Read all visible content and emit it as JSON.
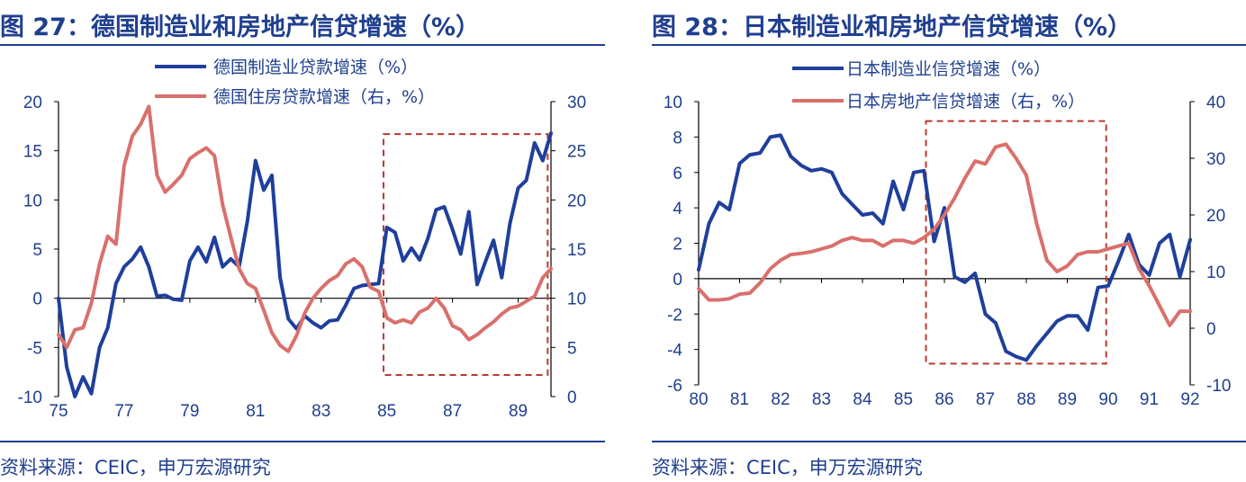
{
  "colors": {
    "navy": "#1f3f8f",
    "series1": "#1f3f9c",
    "series2": "#d9706c",
    "box": "#b83a2e"
  },
  "panels": [
    {
      "title": "图 27：德国制造业和房地产信贷增速（%）",
      "source": "资料来源：CEIC，申万宏源研究",
      "chart_data": {
        "type": "line",
        "x_ticks": [
          "75",
          "77",
          "79",
          "81",
          "83",
          "85",
          "87",
          "89"
        ],
        "y_left_ticks": [
          "20",
          "15",
          "10",
          "5",
          "0",
          "-5",
          "-10"
        ],
        "y_right_ticks": [
          "30",
          "25",
          "20",
          "15",
          "10",
          "5",
          "0"
        ],
        "y_left_range": [
          -10,
          20
        ],
        "y_right_range": [
          0,
          30
        ],
        "x_range": [
          1975,
          1990
        ],
        "highlight_x": [
          1984.9,
          1989.9
        ],
        "highlight_y_left": [
          -7.8,
          16.7
        ],
        "series": [
          {
            "name": "德国制造业贷款增速（%）",
            "axis": "left",
            "x": [
              1975.0,
              1975.25,
              1975.5,
              1975.75,
              1976.0,
              1976.25,
              1976.5,
              1976.75,
              1977.0,
              1977.25,
              1977.5,
              1977.75,
              1978.0,
              1978.25,
              1978.5,
              1978.75,
              1979.0,
              1979.25,
              1979.5,
              1979.75,
              1980.0,
              1980.25,
              1980.5,
              1980.75,
              1981.0,
              1981.25,
              1981.5,
              1981.75,
              1982.0,
              1982.25,
              1982.5,
              1982.75,
              1983.0,
              1983.25,
              1983.5,
              1983.75,
              1984.0,
              1984.25,
              1984.5,
              1984.75,
              1985.0,
              1985.25,
              1985.5,
              1985.75,
              1986.0,
              1986.25,
              1986.5,
              1986.75,
              1987.0,
              1987.25,
              1987.5,
              1987.75,
              1988.0,
              1988.25,
              1988.5,
              1988.75,
              1989.0,
              1989.25,
              1989.5,
              1989.75,
              1990.0
            ],
            "values": [
              0,
              -7,
              -10,
              -8,
              -9.7,
              -5,
              -3,
              1.5,
              3.2,
              4,
              5.2,
              3.2,
              0.2,
              0.3,
              -0.1,
              -0.2,
              3.8,
              5.2,
              3.7,
              6.2,
              3.2,
              4,
              3.2,
              7.8,
              14,
              11,
              12.5,
              2.1,
              -2.1,
              -3.1,
              -1.8,
              -2.5,
              -3,
              -2.3,
              -2.2,
              -0.7,
              1,
              1.3,
              1.4,
              1.5,
              7.2,
              6.7,
              3.8,
              5.1,
              3.9,
              6.1,
              9,
              9.3,
              7,
              4.5,
              8.8,
              1.4,
              3.7,
              5.9,
              2.1,
              7.6,
              11.2,
              12,
              15.8,
              14,
              16.8
            ]
          },
          {
            "name": "德国住房贷款增速（右，%）",
            "axis": "right",
            "x": [
              1975.0,
              1975.25,
              1975.5,
              1975.75,
              1976.0,
              1976.25,
              1976.5,
              1976.75,
              1977.0,
              1977.25,
              1977.5,
              1977.75,
              1978.0,
              1978.25,
              1978.5,
              1978.75,
              1979.0,
              1979.25,
              1979.5,
              1979.75,
              1980.0,
              1980.25,
              1980.5,
              1980.75,
              1981.0,
              1981.25,
              1981.5,
              1981.75,
              1982.0,
              1982.25,
              1982.5,
              1982.75,
              1983.0,
              1983.25,
              1983.5,
              1983.75,
              1984.0,
              1984.25,
              1984.5,
              1984.75,
              1985.0,
              1985.25,
              1985.5,
              1985.75,
              1986.0,
              1986.25,
              1986.5,
              1986.75,
              1987.0,
              1987.25,
              1987.5,
              1987.75,
              1988.0,
              1988.25,
              1988.5,
              1988.75,
              1989.0,
              1989.25,
              1989.5,
              1989.75,
              1990.0
            ],
            "values": [
              6.3,
              5,
              6.8,
              7,
              9.5,
              13.5,
              16.3,
              15.5,
              23.5,
              26.5,
              27.7,
              29.5,
              22.5,
              20.8,
              21.6,
              22.5,
              24.2,
              24.8,
              25.3,
              24.5,
              19.5,
              16.2,
              13,
              11.5,
              11,
              8.8,
              6.5,
              5.2,
              4.6,
              6.2,
              8.5,
              10,
              11,
              11.8,
              12.3,
              13.5,
              14,
              13.2,
              11.1,
              10.7,
              8,
              7.5,
              7.8,
              7.5,
              8.6,
              9,
              10,
              9,
              7.2,
              6.8,
              5.8,
              6.3,
              7,
              7.6,
              8.4,
              9,
              9.2,
              9.7,
              10.2,
              12.1,
              13
            ]
          }
        ]
      }
    },
    {
      "title": "图 28：日本制造业和房地产信贷增速（%）",
      "source": "资料来源：CEIC，申万宏源研究",
      "chart_data": {
        "type": "line",
        "x_ticks": [
          "80",
          "81",
          "82",
          "83",
          "84",
          "85",
          "86",
          "87",
          "88",
          "89",
          "90",
          "91",
          "92"
        ],
        "y_left_ticks": [
          "10",
          "8",
          "6",
          "4",
          "2",
          "0",
          "-2",
          "-4",
          "-6"
        ],
        "y_right_ticks": [
          "40",
          "30",
          "20",
          "10",
          "0",
          "-10"
        ],
        "y_left_range": [
          -6,
          10
        ],
        "y_right_range": [
          -10,
          40
        ],
        "x_range": [
          1980,
          1992
        ],
        "highlight_x": [
          1985.55,
          1989.95
        ],
        "highlight_y_left": [
          -4.8,
          8.9
        ],
        "series": [
          {
            "name": "日本制造业信贷增速（%）",
            "axis": "left",
            "x": [
              1980.0,
              1980.25,
              1980.5,
              1980.75,
              1981.0,
              1981.25,
              1981.5,
              1981.75,
              1982.0,
              1982.25,
              1982.5,
              1982.75,
              1983.0,
              1983.25,
              1983.5,
              1983.75,
              1984.0,
              1984.25,
              1984.5,
              1984.75,
              1985.0,
              1985.25,
              1985.5,
              1985.75,
              1986.0,
              1986.25,
              1986.5,
              1986.75,
              1987.0,
              1987.25,
              1987.5,
              1987.75,
              1988.0,
              1988.25,
              1988.5,
              1988.75,
              1989.0,
              1989.25,
              1989.5,
              1989.75,
              1990.0,
              1990.25,
              1990.5,
              1990.75,
              1991.0,
              1991.25,
              1991.5,
              1991.75,
              1992.0
            ],
            "values": [
              0.5,
              3.1,
              4.3,
              3.9,
              6.5,
              7,
              7.1,
              8,
              8.1,
              6.9,
              6.4,
              6.1,
              6.2,
              6,
              4.8,
              4.2,
              3.6,
              3.7,
              3.1,
              5.5,
              3.9,
              6,
              6.1,
              2.1,
              4,
              0.1,
              -0.2,
              0.3,
              -2,
              -2.5,
              -4.1,
              -4.4,
              -4.6,
              -3.8,
              -3.1,
              -2.4,
              -2.1,
              -2.1,
              -2.9,
              -0.5,
              -0.4,
              1,
              2.5,
              0.8,
              0.2,
              2,
              2.5,
              0.1,
              2.2
            ]
          },
          {
            "name": "日本房地产信贷增速（右，%）",
            "axis": "right",
            "x": [
              1980.0,
              1980.25,
              1980.5,
              1980.75,
              1981.0,
              1981.25,
              1981.5,
              1981.75,
              1982.0,
              1982.25,
              1982.5,
              1982.75,
              1983.0,
              1983.25,
              1983.5,
              1983.75,
              1984.0,
              1984.25,
              1984.5,
              1984.75,
              1985.0,
              1985.25,
              1985.5,
              1985.75,
              1986.0,
              1986.25,
              1986.5,
              1986.75,
              1987.0,
              1987.25,
              1987.5,
              1987.75,
              1988.0,
              1988.25,
              1988.5,
              1988.75,
              1989.0,
              1989.25,
              1989.5,
              1989.75,
              1990.0,
              1990.25,
              1990.5,
              1990.75,
              1991.0,
              1991.25,
              1991.5,
              1991.75,
              1992.0
            ],
            "values": [
              7,
              5,
              5,
              5.2,
              6,
              6.2,
              8,
              10.5,
              12,
              13,
              13.2,
              13.5,
              14,
              14.5,
              15.5,
              16,
              15.5,
              15.5,
              14.5,
              15.5,
              15.5,
              15,
              16,
              17.5,
              20,
              23,
              26.5,
              29.5,
              29,
              32,
              32.5,
              30,
              27,
              18.5,
              12,
              10,
              11,
              13,
              13.5,
              13.5,
              14,
              14.5,
              15,
              10.5,
              7.5,
              4,
              0.5,
              3,
              3
            ]
          }
        ]
      }
    }
  ]
}
